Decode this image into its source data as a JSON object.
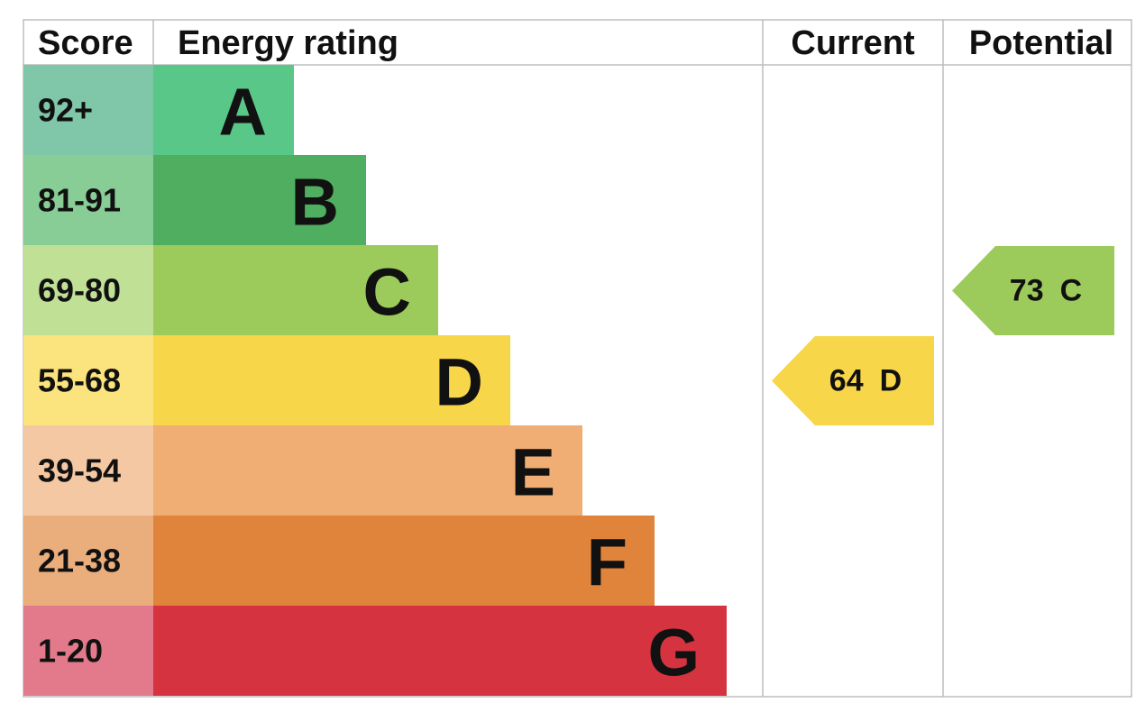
{
  "header": {
    "score": "Score",
    "rating": "Energy rating",
    "current": "Current",
    "potential": "Potential"
  },
  "rows": [
    {
      "score": "92+",
      "rating": "A"
    },
    {
      "score": "81-91",
      "rating": "B"
    },
    {
      "score": "69-80",
      "rating": "C"
    },
    {
      "score": "55-68",
      "rating": "D"
    },
    {
      "score": "39-54",
      "rating": "E"
    },
    {
      "score": "21-38",
      "rating": "F"
    },
    {
      "score": "1-20",
      "rating": "G"
    }
  ],
  "current": {
    "score": 64,
    "rating": "D"
  },
  "potential": {
    "score": 73,
    "rating": "C"
  }
}
